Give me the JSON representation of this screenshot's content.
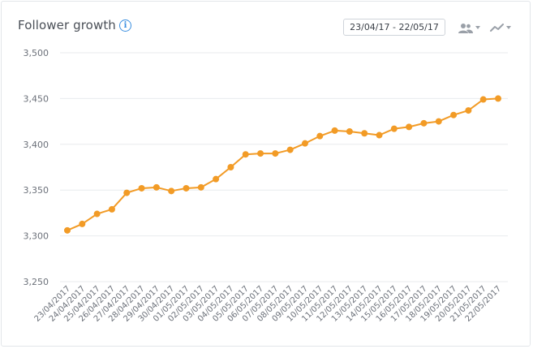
{
  "header": {
    "title": "Follower growth",
    "info_icon": "info-icon",
    "date_range": "23/04/17 - 22/05/17",
    "audience_icon": "people-icon",
    "chart_type_icon": "line-chart-icon"
  },
  "colors": {
    "line": "#f29b26",
    "grid": "#e8ebee",
    "info": "#3b8fe0"
  },
  "chart_data": {
    "type": "line",
    "title": "Follower growth",
    "xlabel": "",
    "ylabel": "",
    "ylim": [
      3250,
      3500
    ],
    "yticks": [
      3250,
      3300,
      3350,
      3400,
      3450,
      3500
    ],
    "ytick_labels": [
      "3,250",
      "3,300",
      "3,350",
      "3,400",
      "3,450",
      "3,500"
    ],
    "grid": true,
    "categories": [
      "23/04/2017",
      "24/04/2017",
      "25/04/2017",
      "26/04/2017",
      "27/04/2017",
      "28/04/2017",
      "29/04/2017",
      "30/04/2017",
      "01/05/2017",
      "02/05/2017",
      "03/05/2017",
      "04/05/2017",
      "05/05/2017",
      "06/05/2017",
      "07/05/2017",
      "08/05/2017",
      "09/05/2017",
      "10/05/2017",
      "11/05/2017",
      "12/05/2017",
      "13/05/2017",
      "14/05/2017",
      "15/05/2017",
      "16/05/2017",
      "17/05/2017",
      "18/05/2017",
      "19/05/2017",
      "20/05/2017",
      "21/05/2017",
      "22/05/2017"
    ],
    "values": [
      3306,
      3313,
      3324,
      3329,
      3347,
      3352,
      3353,
      3349,
      3352,
      3353,
      3362,
      3375,
      3389,
      3390,
      3390,
      3394,
      3401,
      3409,
      3415,
      3414,
      3412,
      3410,
      3417,
      3419,
      3423,
      3425,
      3432,
      3437,
      3449,
      3450
    ]
  }
}
